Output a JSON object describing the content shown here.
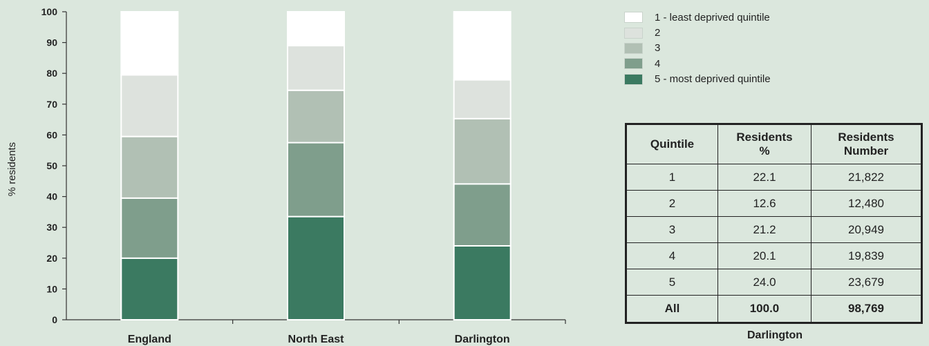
{
  "chart_data": {
    "type": "bar",
    "stacked": true,
    "ylabel": "% residents",
    "xlabel": "",
    "ylim": [
      0,
      100
    ],
    "yticks": [
      0,
      10,
      20,
      30,
      40,
      50,
      60,
      70,
      80,
      90,
      100
    ],
    "categories": [
      "England",
      "North East",
      "Darlington"
    ],
    "series": [
      {
        "name": "5 - most deprived quintile",
        "color": "#3b7a61",
        "values": [
          20.0,
          33.5,
          24.0
        ]
      },
      {
        "name": "4",
        "color": "#7f9e8c",
        "values": [
          19.5,
          24.0,
          20.1
        ]
      },
      {
        "name": "3",
        "color": "#b1c0b4",
        "values": [
          20.0,
          17.0,
          21.2
        ]
      },
      {
        "name": "2",
        "color": "#dde2dd",
        "values": [
          20.0,
          14.5,
          12.6
        ]
      },
      {
        "name": "1 - least deprived quintile",
        "color": "#ffffff",
        "values": [
          20.5,
          11.0,
          22.1
        ]
      }
    ],
    "legend_position": "top-right"
  },
  "legend": {
    "items": [
      {
        "label": "1 - least deprived quintile",
        "color": "#ffffff"
      },
      {
        "label": "2",
        "color": "#dde2dd"
      },
      {
        "label": "3",
        "color": "#b1c0b4"
      },
      {
        "label": "4",
        "color": "#7f9e8c"
      },
      {
        "label": "5 - most deprived quintile",
        "color": "#3b7a61"
      }
    ]
  },
  "table": {
    "headers": [
      [
        "Quintile"
      ],
      [
        "Residents",
        "%"
      ],
      [
        "Residents",
        "Number"
      ]
    ],
    "rows": [
      [
        "1",
        "22.1",
        "21,822"
      ],
      [
        "2",
        "12.6",
        "12,480"
      ],
      [
        "3",
        "21.2",
        "20,949"
      ],
      [
        "4",
        "20.1",
        "19,839"
      ],
      [
        "5",
        "24.0",
        "23,679"
      ]
    ],
    "total": [
      "All",
      "100.0",
      "98,769"
    ],
    "caption": "Darlington"
  },
  "colors": {
    "background": "#dbe7dd",
    "axis": "#333333"
  }
}
